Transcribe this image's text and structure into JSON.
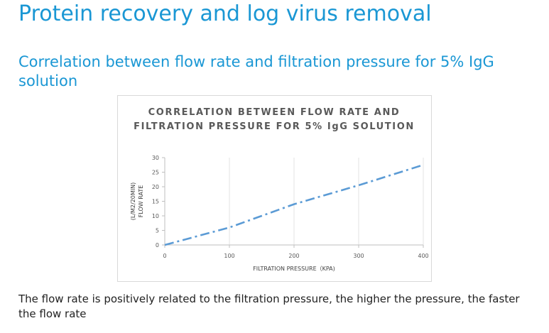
{
  "page": {
    "title": "Protein recovery and log virus removal",
    "section_title": "Correlation between flow rate and filtration pressure for 5% IgG solution",
    "caption": "The flow rate is positively related to the filtration pressure, the higher the pressure, the faster the flow rate"
  },
  "chart_data": {
    "type": "line",
    "title": "CORRELATION BETWEEN FLOW RATE AND FILTRATION PRESSURE FOR 5% IgG SOLUTION",
    "xlabel": "FILTRATION PRESSURE（KPA)",
    "ylabel_line1": "(L/M2/20MIN)",
    "ylabel_line2": "FLOW RATE",
    "x_ticks": [
      0,
      100,
      200,
      300,
      400
    ],
    "y_ticks": [
      0,
      5,
      10,
      15,
      20,
      25,
      30
    ],
    "xlim": [
      0,
      400
    ],
    "ylim": [
      0,
      30
    ],
    "grid": "vertical",
    "series": [
      {
        "color": "#5b9bd5",
        "line_style": "dash-dot",
        "x": [
          0,
          100,
          200,
          300,
          400
        ],
        "y": [
          0,
          6,
          14,
          20.5,
          27.5
        ]
      }
    ]
  }
}
